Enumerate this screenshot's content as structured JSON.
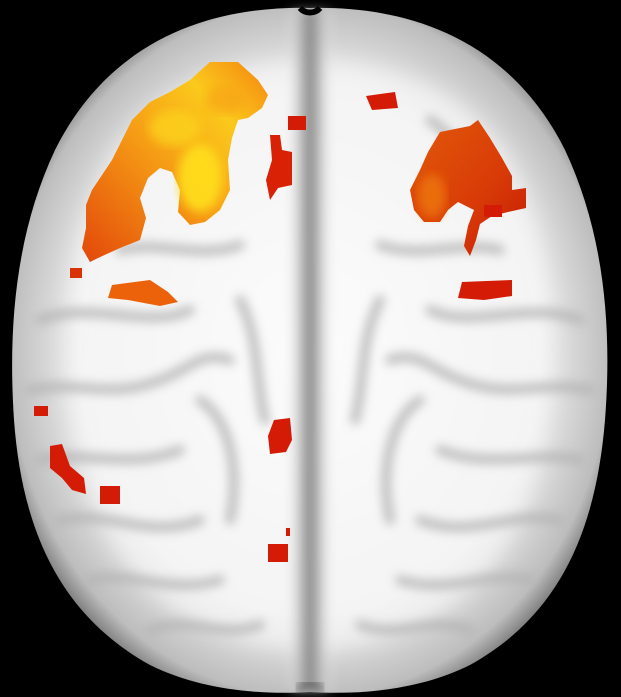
{
  "image": {
    "subject": "axial-brain-slice",
    "orientation": "axial",
    "background_color": "#000000"
  },
  "colors": {
    "brain_white": "#f3f3f3",
    "brain_gray": "#d2d2d2",
    "sulcus_gray": "#a9a9a9",
    "midline_dark": "#7d7d7d",
    "overlay_low": "#d41b05",
    "overlay_mid": "#ef5a0a",
    "overlay_high": "#fba91a",
    "overlay_peak": "#fff21d"
  },
  "activation_clusters": [
    {
      "name": "left-frontal-large",
      "intensity": "high"
    },
    {
      "name": "left-frontal-small",
      "intensity": "mid"
    },
    {
      "name": "right-frontal",
      "intensity": "mid"
    },
    {
      "name": "right-frontal-lower",
      "intensity": "low"
    },
    {
      "name": "medial-left-upper",
      "intensity": "low"
    },
    {
      "name": "medial-left-mid",
      "intensity": "low"
    },
    {
      "name": "medial-left-lower",
      "intensity": "low"
    },
    {
      "name": "left-parietal",
      "intensity": "low"
    },
    {
      "name": "right-frontal-small-top",
      "intensity": "low"
    }
  ]
}
